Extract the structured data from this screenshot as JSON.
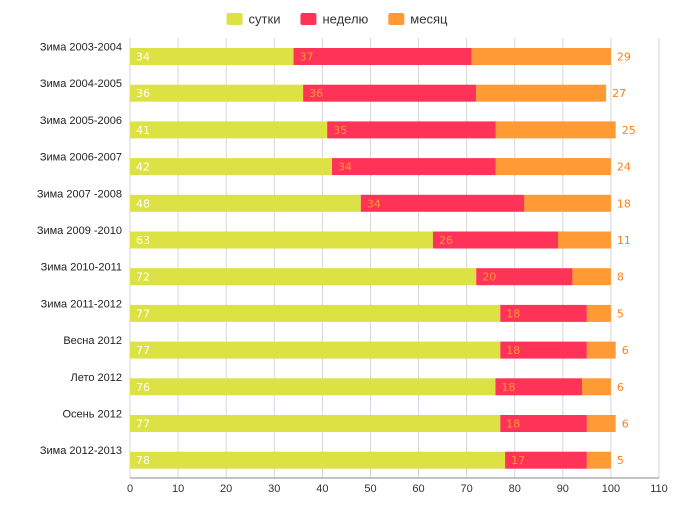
{
  "chart_data": {
    "type": "bar",
    "orientation": "horizontal",
    "stacked": true,
    "categories": [
      "Зима 2003-2004",
      "Зима 2004-2005",
      "Зима 2005-2006",
      "Зима 2006-2007",
      "Зима 2007 -2008",
      "Зима 2009 -2010",
      "Зима 2010-2011",
      "Зима 2011-2012",
      "Весна 2012",
      "Лето 2012",
      "Осень 2012",
      "Зима 2012-2013"
    ],
    "series": [
      {
        "name": "сутки",
        "color": "#dde244",
        "label_color": "#ffffff",
        "values": [
          34,
          36,
          41,
          42,
          48,
          63,
          72,
          77,
          77,
          76,
          77,
          78
        ]
      },
      {
        "name": "неделю",
        "color": "#ff3358",
        "label_color": "#ff9a2e",
        "values": [
          37,
          36,
          35,
          34,
          34,
          26,
          20,
          18,
          18,
          18,
          18,
          17
        ]
      },
      {
        "name": "месяц",
        "color": "#ff9a35",
        "label_color": "#ff7f1a",
        "values": [
          29,
          27,
          25,
          24,
          18,
          11,
          8,
          5,
          6,
          6,
          6,
          5
        ]
      }
    ],
    "xlim": [
      0,
      110
    ],
    "xticks": [
      "0",
      "10",
      "20",
      "30",
      "40",
      "50",
      "60",
      "70",
      "80",
      "90",
      "100",
      "110"
    ],
    "grid": true,
    "legend_position": "top-center",
    "title": "",
    "xlabel": "",
    "ylabel": ""
  }
}
